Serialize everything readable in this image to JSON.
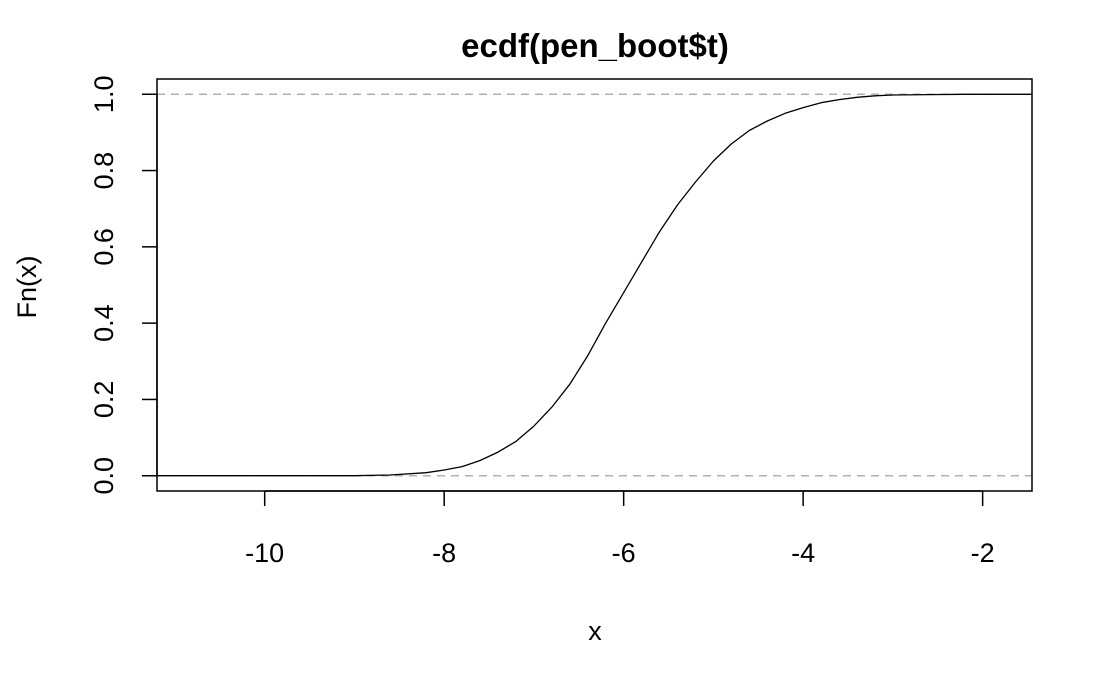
{
  "chart_data": {
    "type": "line",
    "title": "ecdf(pen_boot$t)",
    "xlabel": "x",
    "ylabel": "Fn(x)",
    "xlim": [
      -11.2,
      -1.45
    ],
    "ylim": [
      -0.04,
      1.04
    ],
    "x_ticks": [
      -10,
      -8,
      -6,
      -4,
      -2
    ],
    "x_tick_labels": [
      "-10",
      "-8",
      "-6",
      "-4",
      "-2"
    ],
    "y_ticks": [
      0.0,
      0.2,
      0.4,
      0.6,
      0.8,
      1.0
    ],
    "y_tick_labels": [
      "0.0",
      "0.2",
      "0.4",
      "0.6",
      "0.8",
      "1.0"
    ],
    "reference_lines": [
      0,
      1
    ],
    "grid": false,
    "series": [
      {
        "x": [
          -11.2,
          -9.0,
          -8.6,
          -8.2,
          -8.0,
          -7.8,
          -7.6,
          -7.4,
          -7.2,
          -7.0,
          -6.8,
          -6.6,
          -6.4,
          -6.2,
          -6.0,
          -5.8,
          -5.6,
          -5.4,
          -5.2,
          -5.0,
          -4.8,
          -4.6,
          -4.4,
          -4.2,
          -4.0,
          -3.8,
          -3.6,
          -3.4,
          -3.2,
          -3.0,
          -2.6,
          -2.2,
          -1.45
        ],
        "y": [
          0.0,
          0.0,
          0.002,
          0.008,
          0.015,
          0.024,
          0.04,
          0.062,
          0.09,
          0.13,
          0.18,
          0.24,
          0.315,
          0.4,
          0.48,
          0.56,
          0.64,
          0.71,
          0.77,
          0.825,
          0.87,
          0.905,
          0.93,
          0.95,
          0.965,
          0.978,
          0.986,
          0.992,
          0.996,
          0.998,
          0.999,
          1.0,
          1.0
        ]
      }
    ]
  }
}
